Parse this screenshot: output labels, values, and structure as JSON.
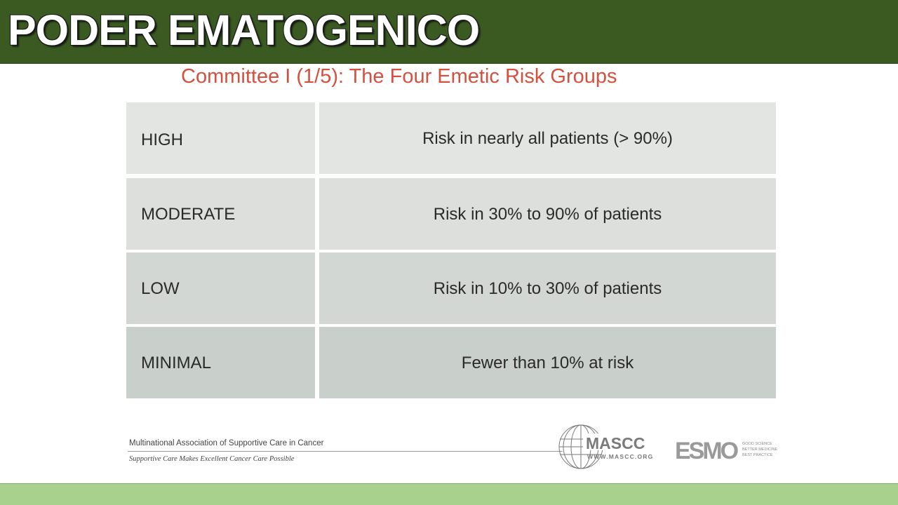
{
  "header": {
    "title": "PODER EMATOGENICO"
  },
  "slide": {
    "title": "Committee I (1/5):  The Four Emetic Risk Groups",
    "rows": [
      {
        "level": "HIGH",
        "description": "Risk in nearly all patients (> 90%)"
      },
      {
        "level": "MODERATE",
        "description": "Risk in 30% to 90% of patients"
      },
      {
        "level": "LOW",
        "description": "Risk in 10% to 30% of patients"
      },
      {
        "level": "MINIMAL",
        "description": "Fewer than 10% at risk"
      }
    ],
    "footer": {
      "organization": "Multinational Association of Supportive Care in Cancer",
      "tagline": "Supportive Care Makes Excellent Cancer Care Possible",
      "mascc_logo_text": "MASCC",
      "mascc_url": "WWW.MASCC.ORG",
      "esmo_logo_text": "ESMO",
      "esmo_tagline": [
        "GOOD SCIENCE",
        "BETTER MEDICINE",
        "BEST PRACTICE"
      ]
    }
  },
  "colors": {
    "header_bg": "#3a5a22",
    "title_red": "#d5503f",
    "bottom_bar": "#a8d18d",
    "row_colors": [
      "#e3e5e3",
      "#dcdfdc",
      "#d3d7d3",
      "#c9cfca"
    ]
  }
}
